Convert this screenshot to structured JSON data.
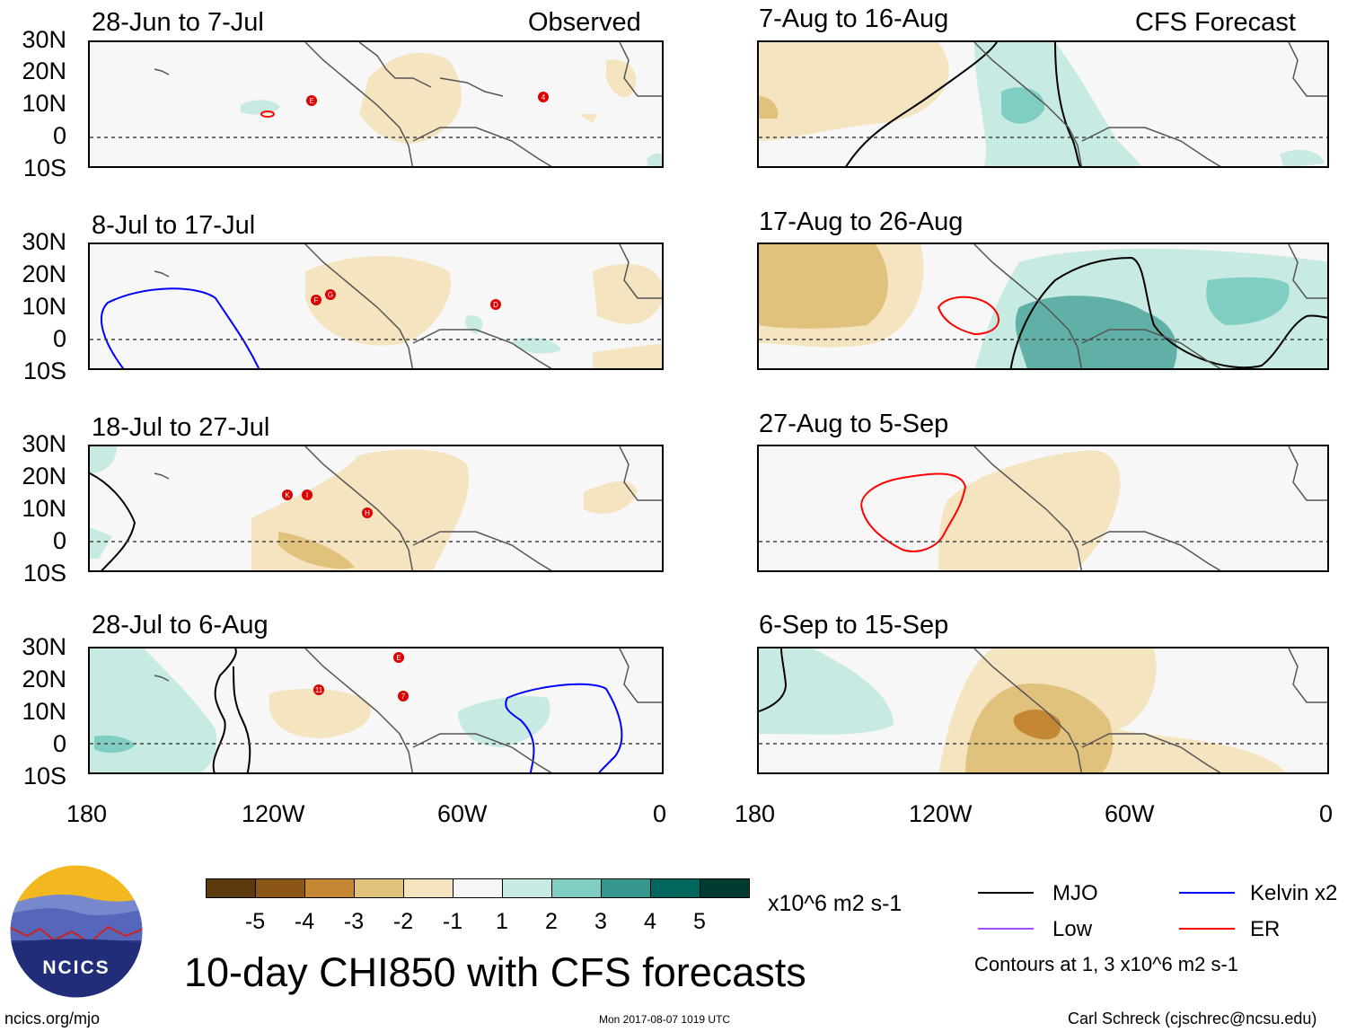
{
  "header": {
    "observed_label": "Observed",
    "forecast_label": "CFS Forecast"
  },
  "panels": [
    {
      "title": "28-Jun to 7-Jul",
      "storms": [
        "E",
        "4"
      ]
    },
    {
      "title": "8-Jul to 17-Jul",
      "storms": [
        "F",
        "G",
        "D"
      ]
    },
    {
      "title": "18-Jul to 27-Jul",
      "storms": [
        "K",
        "I",
        "H"
      ]
    },
    {
      "title": "28-Jul to 6-Aug",
      "storms": [
        "E",
        "11",
        "7"
      ]
    },
    {
      "title": "7-Aug to 16-Aug",
      "storms": []
    },
    {
      "title": "17-Aug to 26-Aug",
      "storms": []
    },
    {
      "title": "27-Aug to 5-Sep",
      "storms": []
    },
    {
      "title": "6-Sep to 15-Sep",
      "storms": []
    }
  ],
  "axes": {
    "y_labels": [
      "30N",
      "20N",
      "10N",
      "0",
      "10S"
    ],
    "x_labels": [
      "180",
      "120W",
      "60W",
      "0"
    ]
  },
  "colorbar": {
    "colors": [
      "#5c3a0d",
      "#8c5616",
      "#c48733",
      "#e1c27d",
      "#f5e4c0",
      "#f7f7f7",
      "#c7eae2",
      "#80cdc1",
      "#35978f",
      "#01665e",
      "#003c30"
    ],
    "labels": [
      "-5",
      "-4",
      "-3",
      "-2",
      "-1",
      "1",
      "2",
      "3",
      "4",
      "5"
    ],
    "units": "x10^6 m2 s-1"
  },
  "legend": {
    "items": [
      {
        "label": "MJO",
        "color": "#000000"
      },
      {
        "label": "Kelvin x2",
        "color": "#0000ff"
      },
      {
        "label": "Low",
        "color": "#a64dff"
      },
      {
        "label": "ER",
        "color": "#ff0000"
      }
    ],
    "note": "Contours at 1, 3 x10^6 m2 s-1"
  },
  "logo": {
    "text": "NCICS"
  },
  "main_title": "10-day CHI850 with CFS forecasts",
  "footer": {
    "site": "ncics.org/mjo",
    "timestamp": "Mon 2017-08-07 1019 UTC",
    "author": "Carl Schreck (cjschrec@ncsu.edu)"
  }
}
